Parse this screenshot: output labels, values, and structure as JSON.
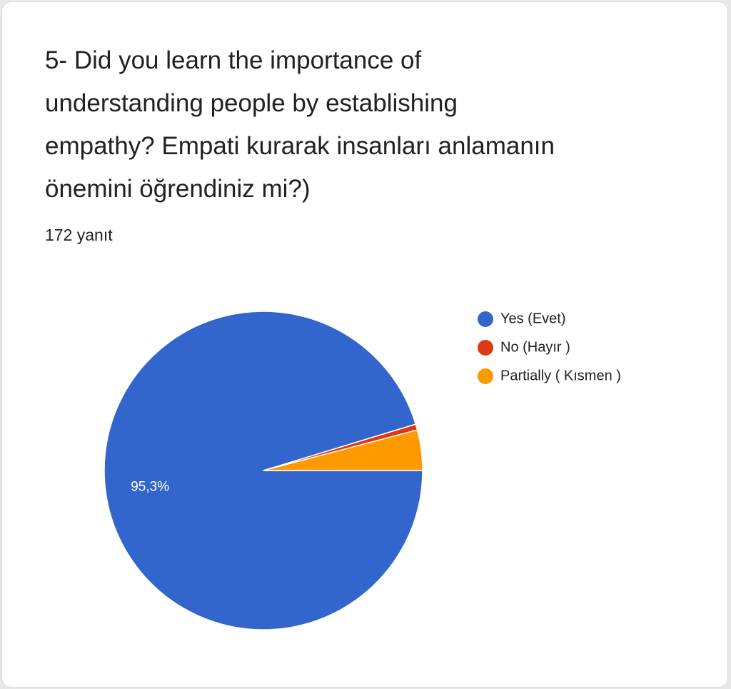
{
  "chart_data": {
    "type": "pie",
    "title": "5- Did you learn the importance of understanding people by establishing empathy? Empati kurarak insanları anlamanın önemini öğrendiniz mi?)",
    "subtitle": "172 yanıt",
    "categories": [
      "Yes (Evet)",
      "No (Hayır )",
      "Partially ( Kısmen )"
    ],
    "values": [
      95.3,
      0.6,
      4.1
    ],
    "value_labels": [
      "95,3%",
      null,
      null
    ],
    "colors": [
      "#3366cc",
      "#dc3912",
      "#ff9900"
    ],
    "legend": "right"
  }
}
